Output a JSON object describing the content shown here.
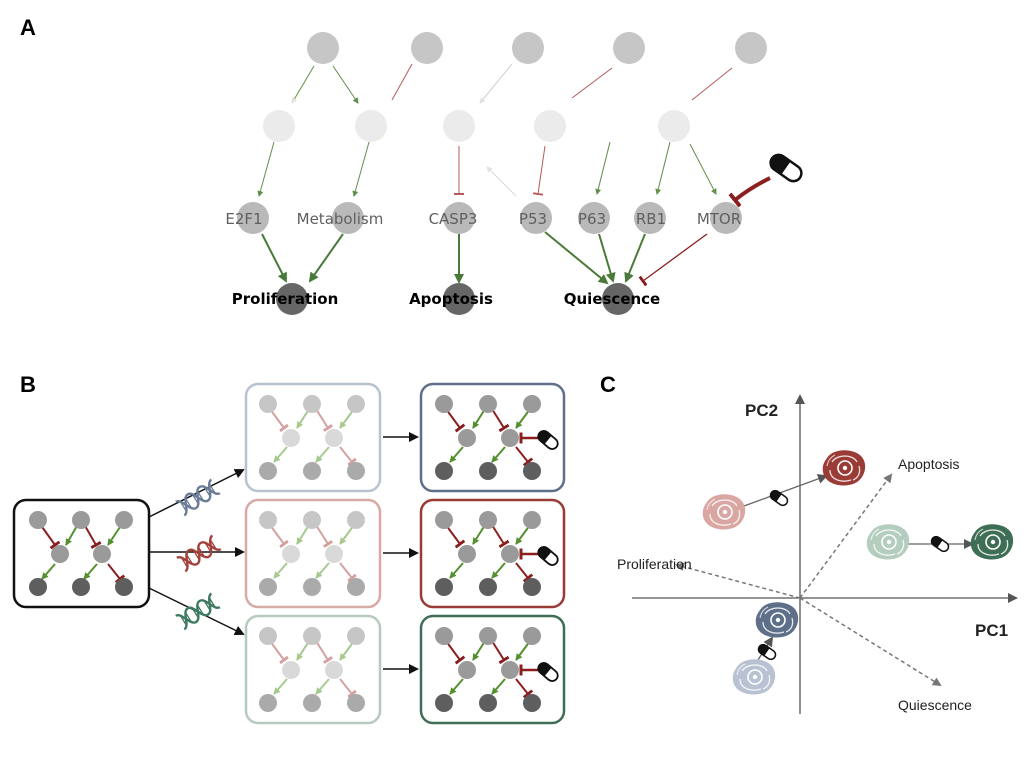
{
  "panels": {
    "a": "A",
    "b": "B",
    "c": "C"
  },
  "panel_a": {
    "genes": [
      "E2F1",
      "Metabolism",
      "CASP3",
      "P53",
      "P63",
      "RB1",
      "MTOR"
    ],
    "outcomes": [
      "Proliferation",
      "Apoptosis",
      "Quiescence"
    ]
  },
  "panel_c": {
    "axis_x": "PC1",
    "axis_y": "PC2",
    "loadings": [
      "Apoptosis",
      "Proliferation",
      "Quiescence"
    ]
  },
  "colors": {
    "activation": "#4a7a3a",
    "inhibition": "#8b1f1f",
    "blue_cell": "#5e6f8a",
    "red_cell": "#9a3b36",
    "green_cell": "#3e6e55"
  },
  "icons": [
    "drug-capsule-icon",
    "dna-icon",
    "cell-icon"
  ]
}
